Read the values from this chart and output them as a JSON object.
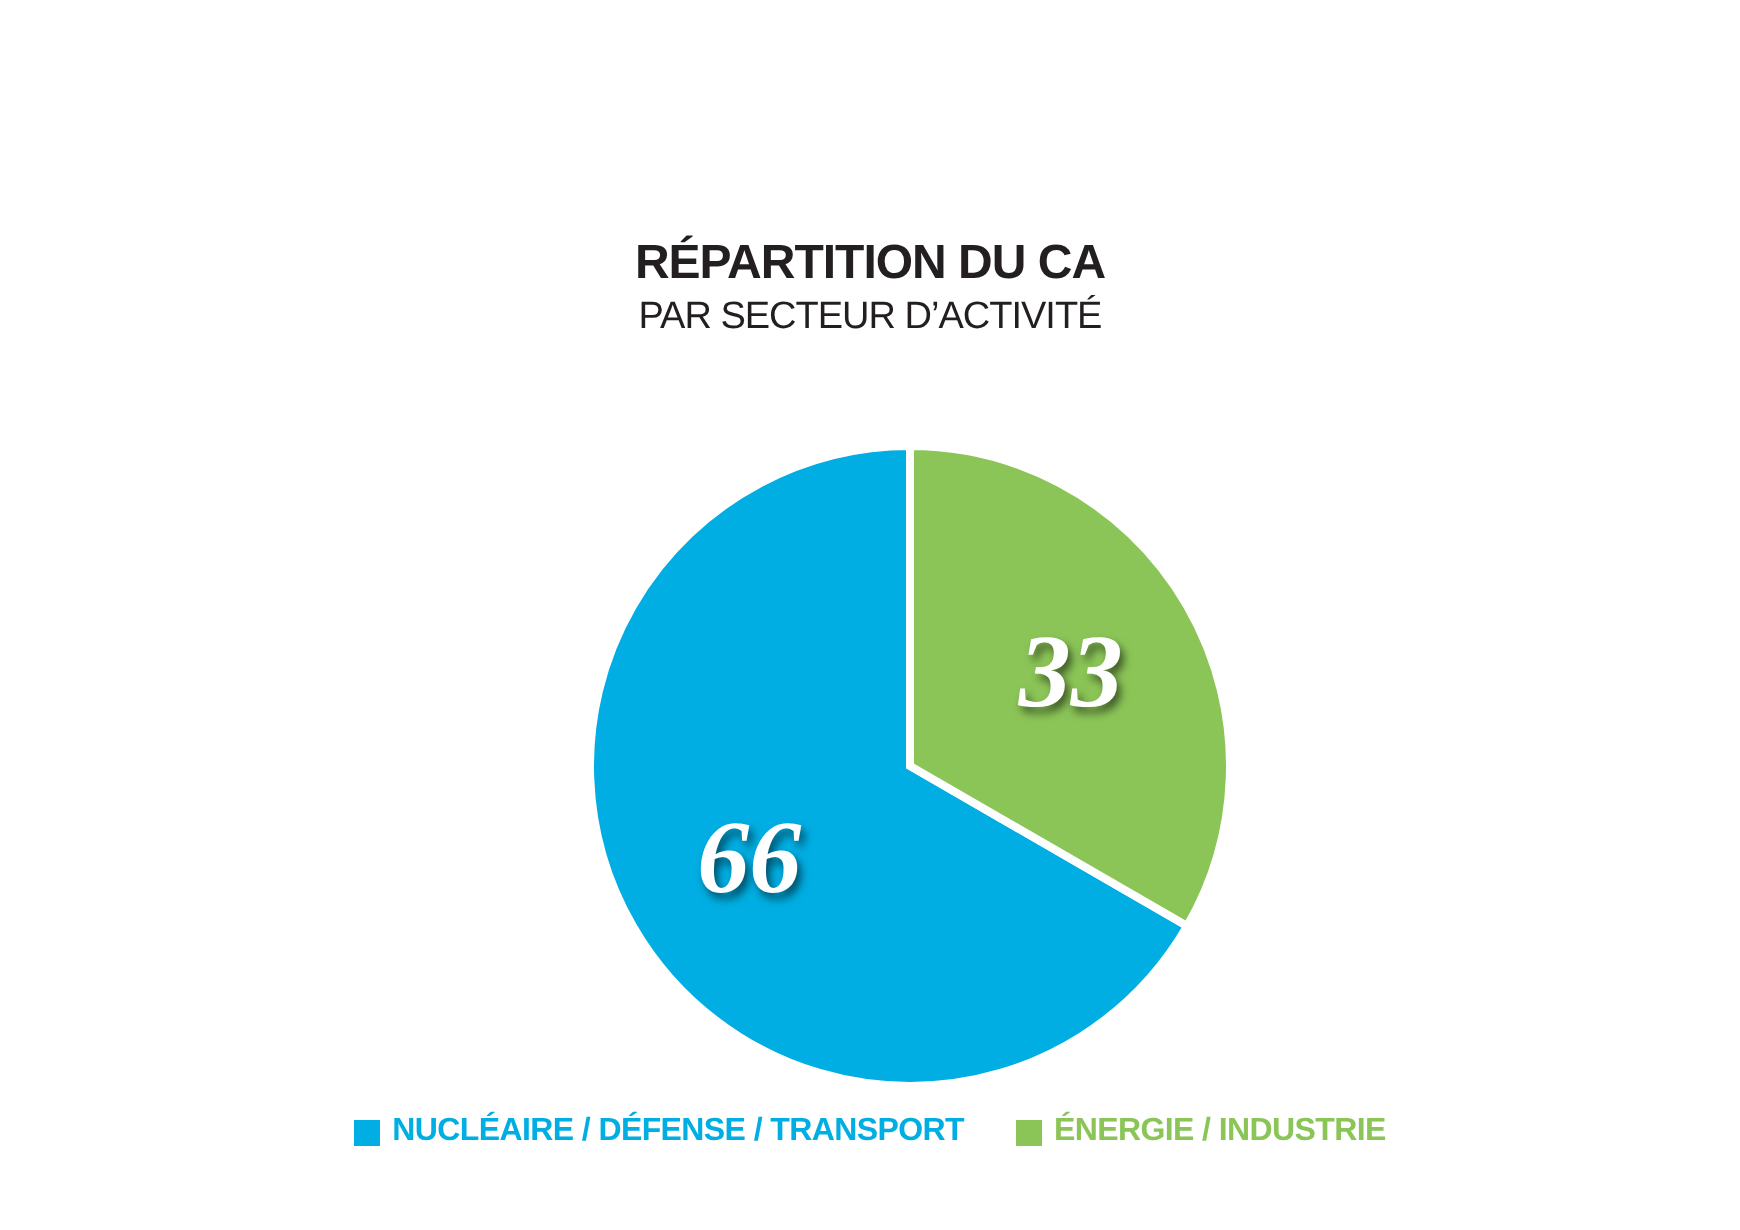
{
  "chart_data": {
    "type": "pie",
    "title": "RÉPARTITION DU CA",
    "subtitle": "PAR SECTEUR D’ACTIVITÉ",
    "categories": [
      "NUCLÉAIRE / DÉFENSE / TRANSPORT",
      "ÉNERGIE / INDUSTRIE"
    ],
    "values": [
      66,
      33
    ],
    "colors": [
      "#00aee3",
      "#8bc557"
    ],
    "data_labels": true,
    "legend": "bottom"
  }
}
